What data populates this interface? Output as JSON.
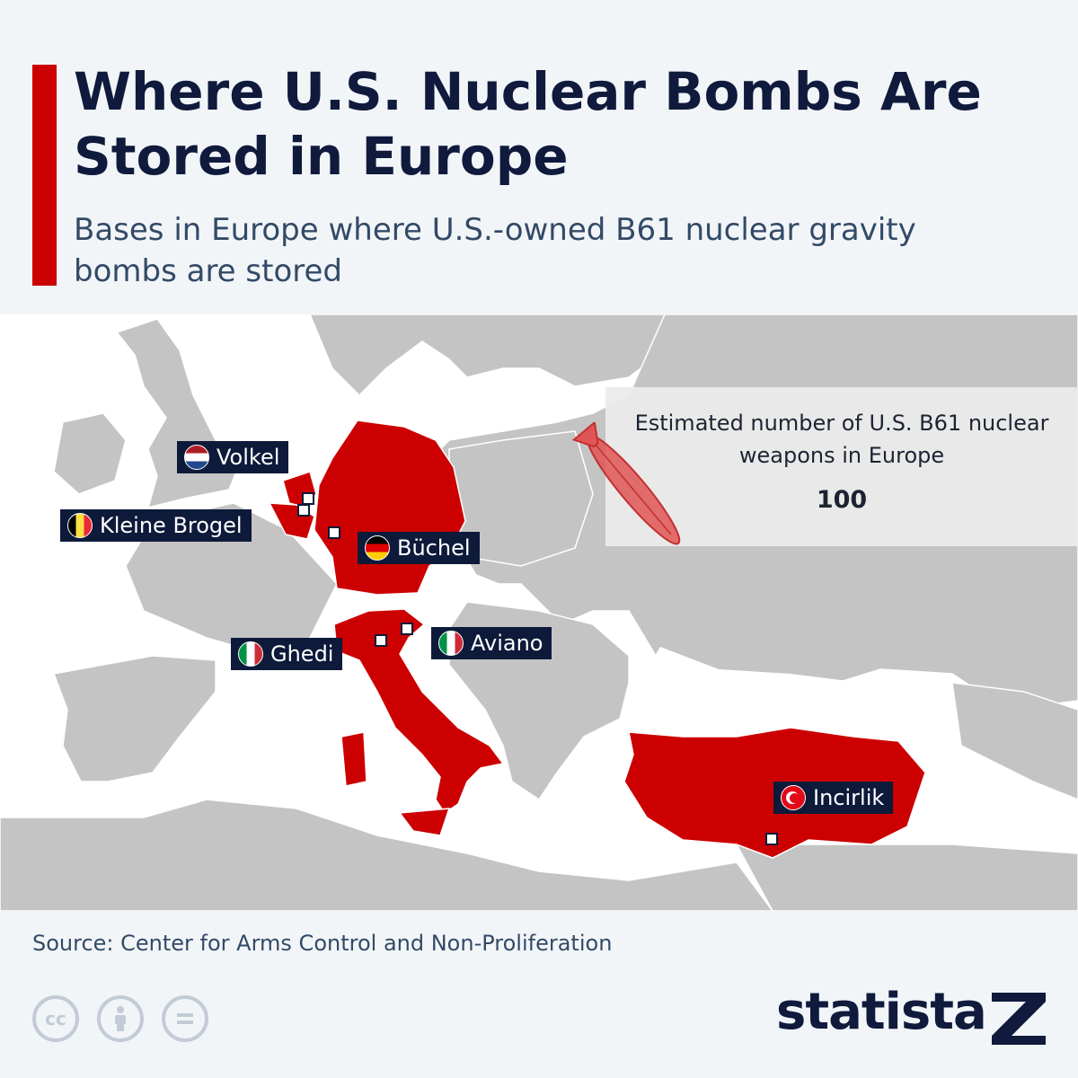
{
  "header": {
    "title": "Where U.S. Nuclear Bombs Are Stored in Europe",
    "subtitle": "Bases in Europe where U.S.-owned B61 nuclear gravity bombs are stored"
  },
  "map": {
    "highlight_color": "#cc0000",
    "land_color": "#c4c4c4",
    "sea_color": "#ffffff",
    "bases": [
      {
        "name": "Volkel",
        "flag": "netherlands-flag-icon"
      },
      {
        "name": "Kleine Brogel",
        "flag": "belgium-flag-icon"
      },
      {
        "name": "Büchel",
        "flag": "germany-flag-icon"
      },
      {
        "name": "Ghedi",
        "flag": "italy-flag-icon"
      },
      {
        "name": "Aviano",
        "flag": "italy-flag-icon"
      },
      {
        "name": "Incirlik",
        "flag": "turkey-flag-icon"
      }
    ]
  },
  "info": {
    "text": "Estimated number of U.S. B61 nuclear weapons in Europe",
    "value": "100",
    "icon": "bomb-icon"
  },
  "footer": {
    "source": "Source: Center for Arms Control and Non-Proliferation",
    "license_icons": [
      "cc-icon",
      "attribution-icon",
      "no-derivatives-icon"
    ],
    "brand": "statista"
  }
}
